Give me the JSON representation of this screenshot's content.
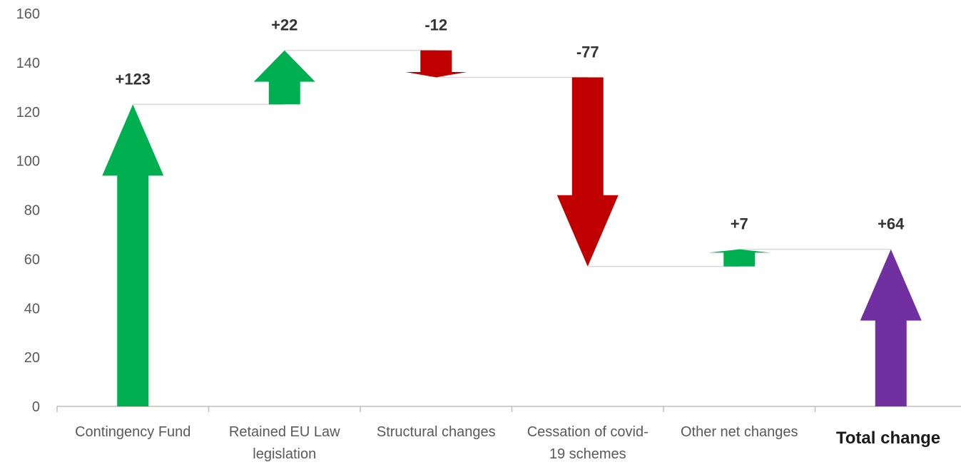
{
  "chart_data": {
    "type": "waterfall",
    "title": "",
    "xlabel": "",
    "ylabel": "",
    "ylim": [
      0,
      160
    ],
    "yticks": [
      0,
      20,
      40,
      60,
      80,
      100,
      120,
      140,
      160
    ],
    "grid": false,
    "legend": "none",
    "steps": [
      {
        "category": [
          "Contingency Fund"
        ],
        "label": "+123",
        "start": 0,
        "end": 123,
        "kind": "increase"
      },
      {
        "category": [
          "Retained EU Law",
          "legislation"
        ],
        "label": "+22",
        "start": 123,
        "end": 145,
        "kind": "increase"
      },
      {
        "category": [
          "Structural changes"
        ],
        "label": "-12",
        "start": 145,
        "end": 134,
        "kind": "decrease"
      },
      {
        "category": [
          "Cessation of covid-",
          "19 schemes"
        ],
        "label": "-77",
        "start": 134,
        "end": 57,
        "kind": "decrease"
      },
      {
        "category": [
          "Other net changes"
        ],
        "label": "+7",
        "start": 57,
        "end": 64,
        "kind": "increase"
      },
      {
        "category": [
          "Total change"
        ],
        "label": "+64",
        "start": 0,
        "end": 64,
        "kind": "total"
      }
    ],
    "colors": {
      "increase": "#00b050",
      "decrease": "#c00000",
      "total": "#7030a0",
      "connector": "#d9d9d9",
      "axis": "#bfbfbf"
    }
  }
}
